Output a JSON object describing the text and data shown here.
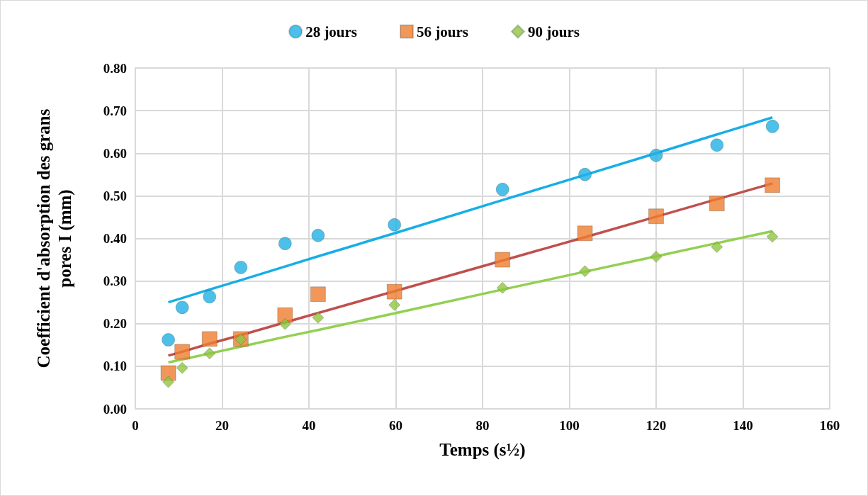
{
  "chart_data": {
    "type": "scatter",
    "xlabel": "Temps (s½)",
    "ylabel": "Coefficient d'absorption des grans pores I (mm)",
    "xlim": [
      0,
      160
    ],
    "xticks": [
      0,
      20,
      40,
      60,
      80,
      100,
      120,
      140,
      160
    ],
    "ylim": [
      0,
      0.8
    ],
    "yticks": [
      {
        "value": 0,
        "label": "0.00"
      },
      {
        "value": 0.1,
        "label": "0.10"
      },
      {
        "value": 0.2,
        "label": "0.20"
      },
      {
        "value": 0.3,
        "label": "0.30"
      },
      {
        "value": 0.4,
        "label": "0.40"
      },
      {
        "value": 0.5,
        "label": "0.50"
      },
      {
        "value": 0.6,
        "label": "0.60"
      },
      {
        "value": 0.7,
        "label": "0.70"
      },
      {
        "value": 0.8,
        "label": "0.80"
      }
    ],
    "grid": true,
    "legend": "top",
    "x": [
      7.6,
      10.8,
      17.1,
      24.3,
      34.5,
      42.1,
      59.7,
      84.6,
      103.6,
      120,
      134,
      146.8
    ],
    "series": [
      {
        "name": "28 jours",
        "color": "#1fb0e3",
        "marker": "circle",
        "values": [
          0.162,
          0.238,
          0.263,
          0.332,
          0.388,
          0.407,
          0.432,
          0.515,
          0.55,
          0.595,
          0.619,
          0.663
        ]
      },
      {
        "name": "56 jours",
        "color": "#ed7d31",
        "marker": "square",
        "values": [
          0.084,
          0.134,
          0.164,
          0.164,
          0.22,
          0.269,
          0.275,
          0.35,
          0.412,
          0.452,
          0.482,
          0.525
        ]
      },
      {
        "name": "90 jours",
        "color": "#8fc640",
        "marker": "diamond",
        "values": [
          0.063,
          0.096,
          0.13,
          0.163,
          0.199,
          0.214,
          0.244,
          0.284,
          0.323,
          0.357,
          0.38,
          0.404
        ]
      },
      {
        "type": "line",
        "color": "#17aee8",
        "marker": "none",
        "values": [
          0.25,
          0.26,
          0.28,
          0.302,
          0.334,
          0.358,
          0.412,
          0.49,
          0.549,
          0.6,
          0.644,
          0.684
        ]
      },
      {
        "type": "line",
        "color": "#c0504d",
        "marker": "none",
        "values": [
          0.125,
          0.134,
          0.153,
          0.173,
          0.203,
          0.225,
          0.276,
          0.348,
          0.403,
          0.451,
          0.492,
          0.529
        ]
      },
      {
        "type": "line",
        "color": "#92d050",
        "marker": "none",
        "values": [
          0.109,
          0.116,
          0.13,
          0.146,
          0.169,
          0.185,
          0.224,
          0.28,
          0.322,
          0.358,
          0.389,
          0.417
        ]
      }
    ]
  }
}
